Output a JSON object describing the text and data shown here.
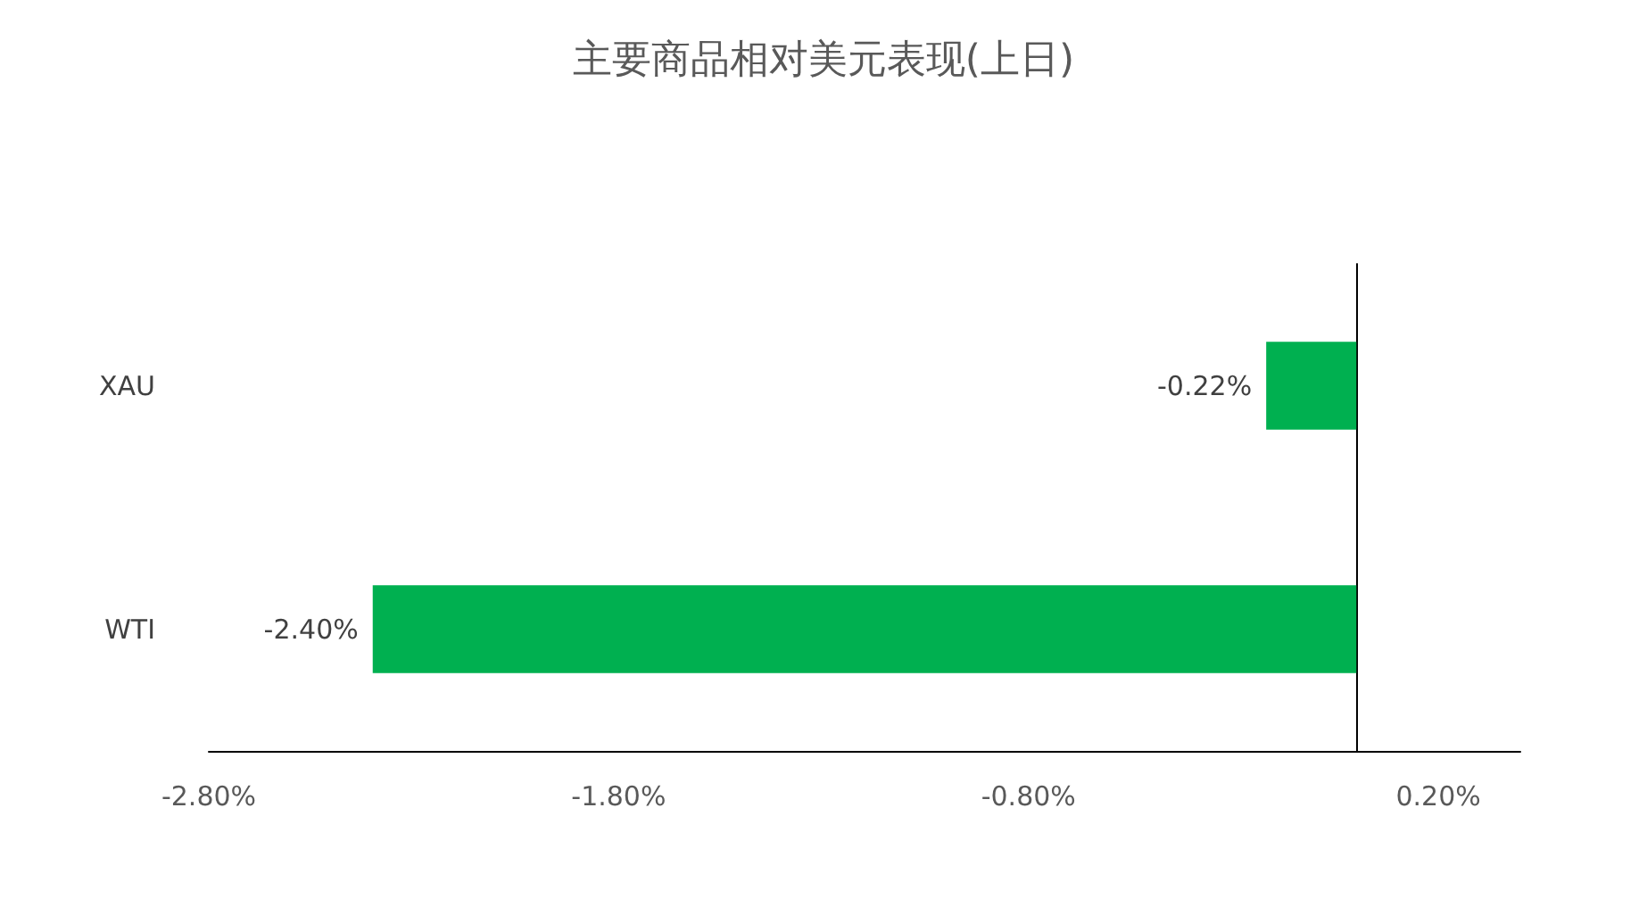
{
  "chart_data": {
    "type": "bar",
    "title": "主要商品相对美元表现(上日)",
    "orientation": "horizontal",
    "categories": [
      "XAU",
      "WTI"
    ],
    "values": [
      -0.22,
      -2.4
    ],
    "color": "#00b050",
    "value_labels": [
      "-0.22%",
      "-2.40%"
    ],
    "xlim": [
      -2.8,
      0.4
    ],
    "xticks": [
      {
        "value": -2.8,
        "label": "-2.80%"
      },
      {
        "value": -1.8,
        "label": "-1.80%"
      },
      {
        "value": -0.8,
        "label": "-0.80%"
      },
      {
        "value": 0.2,
        "label": "0.20%"
      }
    ],
    "grid": false
  }
}
